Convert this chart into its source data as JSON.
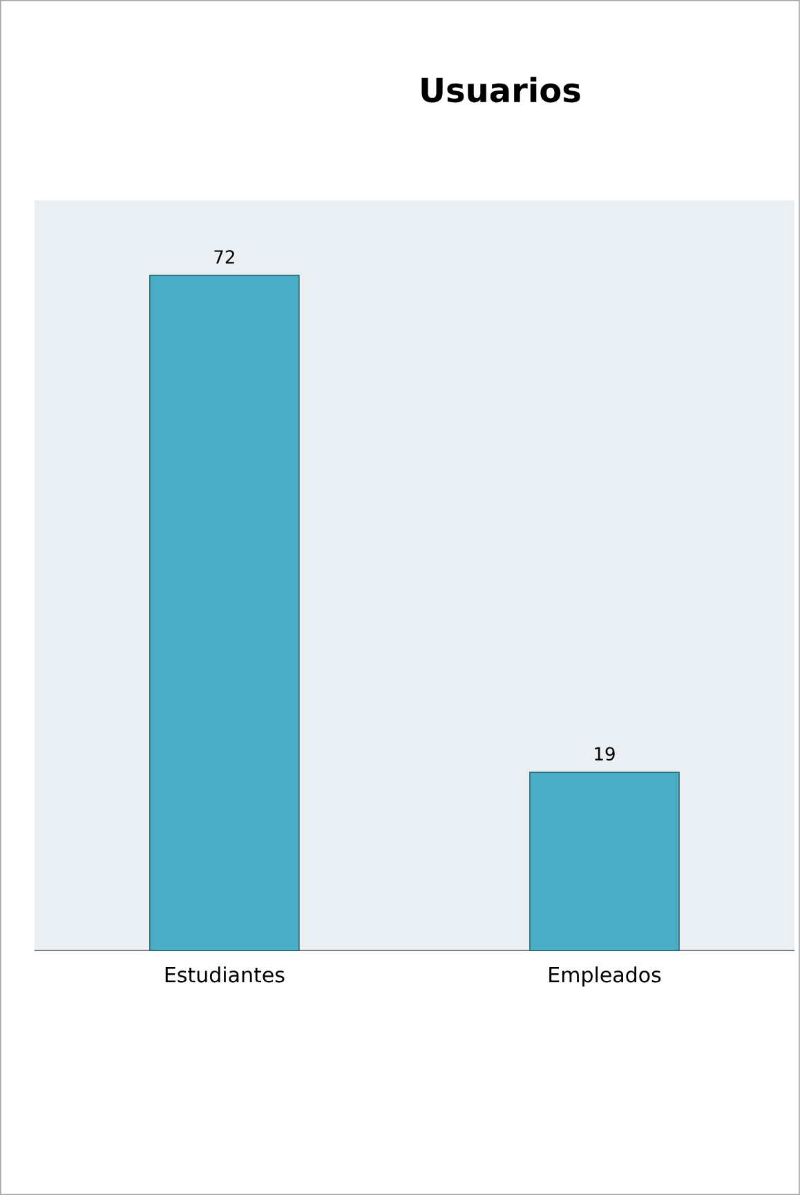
{
  "chart_data": {
    "type": "bar",
    "title": "Usuarios",
    "categories": [
      "Estudiantes",
      "Empleados"
    ],
    "values": [
      72,
      19
    ],
    "color": "#4bacc6",
    "ylim": [
      0,
      80
    ],
    "data_labels": true
  }
}
